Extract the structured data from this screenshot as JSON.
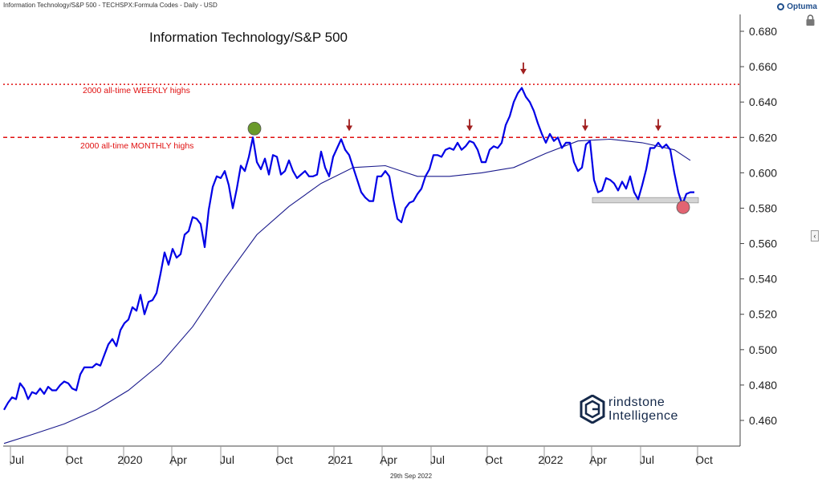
{
  "header": {
    "meta": "Information Technology/S&P 500 - TECHSPX:Formula Codes - Daily - USD",
    "brand": "Optuma"
  },
  "footer": {
    "date": "29th Sep 2022"
  },
  "watermark": {
    "line1": "rindstone",
    "line2": "Intelligence",
    "logo_letter": "G"
  },
  "chart_data": {
    "type": "line",
    "title": "Information Technology/S&P 500",
    "ylim": [
      0.45,
      0.69
    ],
    "yticks": [
      0.46,
      0.48,
      0.5,
      0.52,
      0.54,
      0.56,
      0.58,
      0.6,
      0.62,
      0.64,
      0.66,
      0.68
    ],
    "ytick_labels": [
      "0.460",
      "0.480",
      "0.500",
      "0.520",
      "0.540",
      "0.560",
      "0.580",
      "0.600",
      "0.620",
      "0.640",
      "0.660",
      "0.680"
    ],
    "xlim": [
      0,
      1000
    ],
    "xtick_labels": [
      {
        "label": "Jul",
        "x": 21
      },
      {
        "label": "Oct",
        "x": 92
      },
      {
        "label": "2020",
        "x": 162
      },
      {
        "label": "Apr",
        "x": 222
      },
      {
        "label": "Jul",
        "x": 283
      },
      {
        "label": "Oct",
        "x": 354
      },
      {
        "label": "2021",
        "x": 424
      },
      {
        "label": "Apr",
        "x": 484
      },
      {
        "label": "Jul",
        "x": 545
      },
      {
        "label": "Oct",
        "x": 615
      },
      {
        "label": "2022",
        "x": 686
      },
      {
        "label": "Apr",
        "x": 745
      },
      {
        "label": "Jul",
        "x": 806
      },
      {
        "label": "Oct",
        "x": 877
      }
    ],
    "series": [
      {
        "role": "price",
        "color": "#0000e6",
        "points": [
          [
            5,
            0.466
          ],
          [
            10,
            0.47
          ],
          [
            15,
            0.473
          ],
          [
            20,
            0.472
          ],
          [
            25,
            0.481
          ],
          [
            30,
            0.478
          ],
          [
            35,
            0.472
          ],
          [
            40,
            0.476
          ],
          [
            45,
            0.475
          ],
          [
            50,
            0.478
          ],
          [
            55,
            0.475
          ],
          [
            60,
            0.479
          ],
          [
            65,
            0.477
          ],
          [
            70,
            0.477
          ],
          [
            75,
            0.48
          ],
          [
            80,
            0.482
          ],
          [
            85,
            0.481
          ],
          [
            90,
            0.478
          ],
          [
            95,
            0.477
          ],
          [
            100,
            0.486
          ],
          [
            105,
            0.49
          ],
          [
            110,
            0.49
          ],
          [
            115,
            0.49
          ],
          [
            120,
            0.492
          ],
          [
            125,
            0.491
          ],
          [
            130,
            0.497
          ],
          [
            135,
            0.503
          ],
          [
            140,
            0.506
          ],
          [
            145,
            0.502
          ],
          [
            150,
            0.511
          ],
          [
            155,
            0.515
          ],
          [
            160,
            0.517
          ],
          [
            165,
            0.524
          ],
          [
            170,
            0.522
          ],
          [
            175,
            0.531
          ],
          [
            180,
            0.52
          ],
          [
            185,
            0.527
          ],
          [
            190,
            0.528
          ],
          [
            195,
            0.532
          ],
          [
            200,
            0.543
          ],
          [
            205,
            0.555
          ],
          [
            210,
            0.548
          ],
          [
            215,
            0.557
          ],
          [
            220,
            0.552
          ],
          [
            225,
            0.554
          ],
          [
            230,
            0.565
          ],
          [
            235,
            0.567
          ],
          [
            240,
            0.575
          ],
          [
            245,
            0.574
          ],
          [
            250,
            0.571
          ],
          [
            255,
            0.558
          ],
          [
            260,
            0.579
          ],
          [
            265,
            0.592
          ],
          [
            270,
            0.598
          ],
          [
            275,
            0.597
          ],
          [
            280,
            0.601
          ],
          [
            285,
            0.593
          ],
          [
            290,
            0.58
          ],
          [
            295,
            0.591
          ],
          [
            300,
            0.604
          ],
          [
            305,
            0.601
          ],
          [
            310,
            0.609
          ],
          [
            315,
            0.62
          ],
          [
            320,
            0.606
          ],
          [
            325,
            0.602
          ],
          [
            330,
            0.608
          ],
          [
            335,
            0.599
          ],
          [
            340,
            0.61
          ],
          [
            345,
            0.609
          ],
          [
            350,
            0.599
          ],
          [
            355,
            0.601
          ],
          [
            360,
            0.607
          ],
          [
            365,
            0.601
          ],
          [
            370,
            0.597
          ],
          [
            375,
            0.599
          ],
          [
            380,
            0.601
          ],
          [
            385,
            0.598
          ],
          [
            390,
            0.598
          ],
          [
            395,
            0.599
          ],
          [
            400,
            0.612
          ],
          [
            405,
            0.603
          ],
          [
            410,
            0.598
          ],
          [
            415,
            0.609
          ],
          [
            420,
            0.614
          ],
          [
            425,
            0.619
          ],
          [
            430,
            0.613
          ],
          [
            435,
            0.61
          ],
          [
            440,
            0.603
          ],
          [
            445,
            0.596
          ],
          [
            450,
            0.589
          ],
          [
            455,
            0.586
          ],
          [
            460,
            0.584
          ],
          [
            465,
            0.584
          ],
          [
            470,
            0.598
          ],
          [
            475,
            0.598
          ],
          [
            480,
            0.601
          ],
          [
            485,
            0.598
          ],
          [
            490,
            0.585
          ],
          [
            495,
            0.574
          ],
          [
            500,
            0.572
          ],
          [
            505,
            0.58
          ],
          [
            510,
            0.583
          ],
          [
            515,
            0.584
          ],
          [
            520,
            0.588
          ],
          [
            525,
            0.591
          ],
          [
            530,
            0.598
          ],
          [
            535,
            0.602
          ],
          [
            540,
            0.61
          ],
          [
            545,
            0.61
          ],
          [
            550,
            0.609
          ],
          [
            555,
            0.613
          ],
          [
            560,
            0.614
          ],
          [
            565,
            0.613
          ],
          [
            570,
            0.617
          ],
          [
            575,
            0.613
          ],
          [
            580,
            0.615
          ],
          [
            585,
            0.618
          ],
          [
            590,
            0.617
          ],
          [
            595,
            0.613
          ],
          [
            600,
            0.606
          ],
          [
            605,
            0.606
          ],
          [
            610,
            0.613
          ],
          [
            615,
            0.615
          ],
          [
            620,
            0.614
          ],
          [
            625,
            0.617
          ],
          [
            630,
            0.627
          ],
          [
            635,
            0.632
          ],
          [
            640,
            0.64
          ],
          [
            645,
            0.645
          ],
          [
            650,
            0.648
          ],
          [
            655,
            0.643
          ],
          [
            660,
            0.64
          ],
          [
            665,
            0.635
          ],
          [
            670,
            0.628
          ],
          [
            675,
            0.622
          ],
          [
            680,
            0.617
          ],
          [
            685,
            0.622
          ],
          [
            690,
            0.618
          ],
          [
            695,
            0.62
          ],
          [
            700,
            0.614
          ],
          [
            705,
            0.617
          ],
          [
            710,
            0.617
          ],
          [
            715,
            0.606
          ],
          [
            720,
            0.601
          ],
          [
            725,
            0.603
          ],
          [
            730,
            0.616
          ],
          [
            735,
            0.618
          ],
          [
            740,
            0.596
          ],
          [
            745,
            0.589
          ],
          [
            750,
            0.59
          ],
          [
            755,
            0.597
          ],
          [
            760,
            0.596
          ],
          [
            765,
            0.594
          ],
          [
            770,
            0.59
          ],
          [
            775,
            0.595
          ],
          [
            780,
            0.591
          ],
          [
            785,
            0.598
          ],
          [
            790,
            0.589
          ],
          [
            795,
            0.585
          ],
          [
            800,
            0.593
          ],
          [
            805,
            0.602
          ],
          [
            810,
            0.614
          ],
          [
            815,
            0.614
          ],
          [
            820,
            0.617
          ],
          [
            825,
            0.614
          ],
          [
            830,
            0.616
          ],
          [
            835,
            0.613
          ],
          [
            840,
            0.6
          ],
          [
            845,
            0.589
          ],
          [
            850,
            0.582
          ],
          [
            855,
            0.588
          ],
          [
            860,
            0.589
          ],
          [
            865,
            0.589
          ]
        ]
      },
      {
        "role": "moving-average",
        "color": "#1a1a8c",
        "points": [
          [
            5,
            0.447
          ],
          [
            40,
            0.452
          ],
          [
            80,
            0.458
          ],
          [
            120,
            0.466
          ],
          [
            160,
            0.477
          ],
          [
            200,
            0.492
          ],
          [
            240,
            0.513
          ],
          [
            280,
            0.54
          ],
          [
            320,
            0.565
          ],
          [
            360,
            0.581
          ],
          [
            400,
            0.594
          ],
          [
            440,
            0.603
          ],
          [
            480,
            0.604
          ],
          [
            520,
            0.598
          ],
          [
            560,
            0.598
          ],
          [
            600,
            0.6
          ],
          [
            640,
            0.603
          ],
          [
            680,
            0.611
          ],
          [
            720,
            0.618
          ],
          [
            760,
            0.619
          ],
          [
            800,
            0.617
          ],
          [
            840,
            0.613
          ],
          [
            860,
            0.607
          ]
        ]
      }
    ],
    "annotations": {
      "weekly_high": {
        "value": 0.65,
        "label": "2000 all-time WEEKLY highs",
        "color": "#e01010"
      },
      "monthly_high": {
        "value": 0.62,
        "label": "2000 all-time MONTHLY highs",
        "color": "#e01010"
      },
      "support_band": {
        "x": [
          738,
          870
        ],
        "y": [
          0.583,
          0.586
        ],
        "color": "#d4d4d4"
      },
      "arrows": [
        {
          "x": 435,
          "value": 0.624
        },
        {
          "x": 585,
          "value": 0.624
        },
        {
          "x": 652,
          "value": 0.656
        },
        {
          "x": 729,
          "value": 0.624
        },
        {
          "x": 820,
          "value": 0.624
        }
      ],
      "markers": [
        {
          "x": 317,
          "value": 0.625,
          "color": "#6a9a2a"
        },
        {
          "x": 851,
          "value": 0.5805,
          "color": "#e26472"
        }
      ],
      "arrow_color": "#a11f1f"
    }
  }
}
